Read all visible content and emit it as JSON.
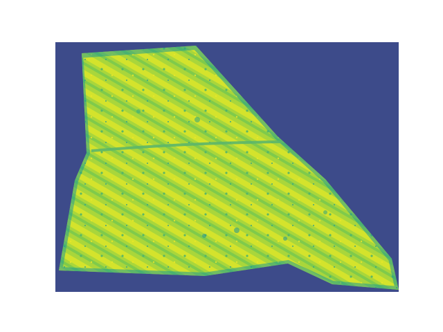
{
  "image": {
    "kind": "raster-heatmap-rendering",
    "colormap": "viridis-like",
    "colors": {
      "background": "#3d4b8a",
      "field_base": "#a7d53a",
      "field_light": "#d7e32a",
      "field_dark": "#63c15d",
      "edge": "#21a88b"
    }
  }
}
